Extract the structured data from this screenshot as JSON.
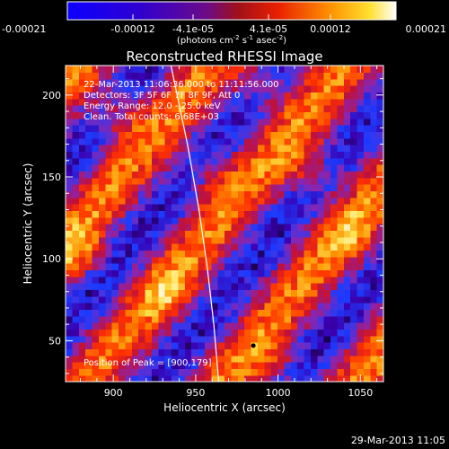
{
  "colorbar": {
    "tick_labels": [
      "-0.00021",
      "-0.00012",
      "-4.1e-05",
      "4.1e-05",
      "0.00012",
      "0.00021"
    ],
    "unit_line": {
      "prefix": "(photons cm",
      "exp1": "-2",
      "mid": " s",
      "exp2": "-1",
      "tail": " asec",
      "exp3": "-2",
      "close": ")"
    },
    "range": [
      -0.00021,
      0.00021
    ]
  },
  "chart_data": {
    "type": "heatmap",
    "title": "Reconstructed RHESSI Image",
    "xlabel": "Heliocentric X (arcsec)",
    "ylabel": "Heliocentric Y (arcsec)",
    "xlim": [
      871,
      1064
    ],
    "ylim": [
      25,
      218
    ],
    "xticks": [
      900,
      950,
      1000,
      1050
    ],
    "yticks": [
      50,
      100,
      150,
      200
    ],
    "annotations": [
      "22-Mar-2013 11:06:36.000 to 11:11:56.000",
      "Detectors: 3F 5F 6F 7F 8F 9F, Att 0",
      "Energy Range: 12.0 - 25.0 keV",
      "Clean.  Total counts: 6.68E+03"
    ],
    "peak_label": "Position of Peak = [900,179]",
    "peak_position": [
      900,
      179
    ],
    "min_marker": [
      985,
      47
    ],
    "limb_curve": [
      [
        935,
        218
      ],
      [
        945,
        170
      ],
      [
        952,
        130
      ],
      [
        957,
        95
      ],
      [
        961,
        60
      ],
      [
        964,
        25
      ]
    ],
    "grid": false,
    "legend": "none",
    "colormap": [
      "#000000",
      "#3b00b0",
      "#1b3cff",
      "#8a25b0",
      "#c0103a",
      "#ff3000",
      "#ff9000",
      "#ffe24a",
      "#ffffff"
    ]
  },
  "footer": {
    "timestamp": "29-Mar-2013 11:05"
  }
}
